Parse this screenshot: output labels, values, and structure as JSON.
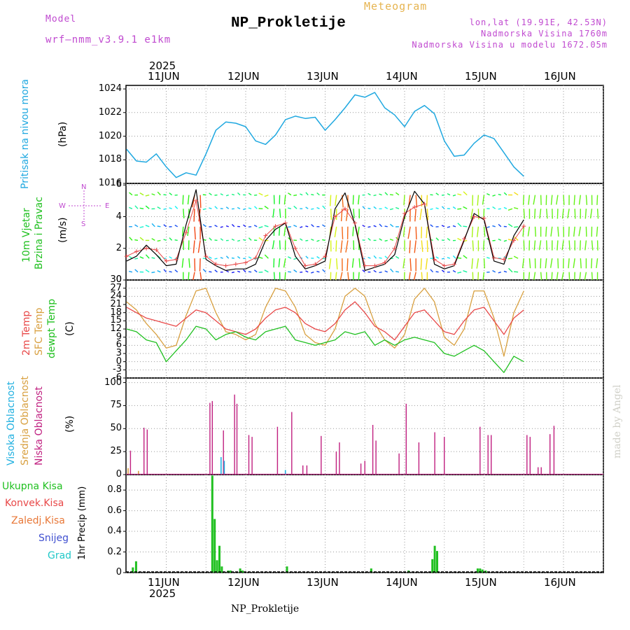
{
  "header": {
    "model_label": "Model",
    "model_name": "wrf–nmm_v3.9.1 e1km",
    "meteogram": "Meteogram",
    "title": "NP_Prokletije",
    "lonlat": "lon,lat (19.91E, 42.53N)",
    "elevation": "Nadmorska Visina 1760m",
    "model_elevation": "Nadmorska Visina u modelu 1672.05m"
  },
  "footer": {
    "station": "NP_Prokletije",
    "credit": "made by Angel"
  },
  "colors": {
    "pressure": "#1fa8e0",
    "wind_speed": "#000000",
    "gust": "#e84848",
    "temp2m": "#e84848",
    "sfc": "#d8a040",
    "dewpt": "#20c020",
    "cloud_high": "#20b0e0",
    "cloud_mid": "#d8a040",
    "cloud_low": "#c02080",
    "precip_total": "#20c020",
    "precip_conv": "#e84848",
    "precip_snow": "#4050d0",
    "label_model": "#c04ad0",
    "label_wind": "#c04ad0"
  },
  "axis": {
    "year": "2025",
    "days": [
      "11JUN",
      "12JUN",
      "13JUN",
      "14JUN",
      "15JUN",
      "16JUN"
    ]
  },
  "panels": {
    "pressure": {
      "ylabel": "Pritisak na nivou mora",
      "unit": "(hPa)",
      "ticks": [
        "1016",
        "1018",
        "1020",
        "1022",
        "1024"
      ]
    },
    "wind": {
      "ylabel1": "10m Vjetar",
      "ylabel2": "Brzina i Pravac",
      "unit": "(m/s)",
      "ticks": [
        "0",
        "2",
        "4",
        "6"
      ],
      "compass_n": "N",
      "compass_s": "S",
      "compass_e": "E",
      "compass_w": "W"
    },
    "temp": {
      "ylabel1": "2m Temp",
      "ylabel2": "SFC Temp",
      "ylabel3": "dewpt Temp",
      "unit": "(C)",
      "ticks": [
        "-6",
        "-3",
        "0",
        "3",
        "6",
        "9",
        "12",
        "15",
        "18",
        "21",
        "24",
        "27",
        "30"
      ]
    },
    "cloud": {
      "ylabel1": "Visoka Oblacnost",
      "ylabel2": "Srednja Oblacnost",
      "ylabel3": "Niska Oblacnost",
      "unit": "(%)",
      "ticks": [
        "0",
        "25",
        "50",
        "75",
        "100"
      ]
    },
    "precip": {
      "legend": [
        "Ukupna Kisa",
        "Konvek.Kisa",
        "Zaledj.Kisa",
        "Snijeg",
        "Grad"
      ],
      "ylabel": "1hr Precip (mm)",
      "ticks": [
        "0",
        "0.2",
        "0.4",
        "0.6",
        "0.8"
      ]
    }
  },
  "chart_data": [
    {
      "type": "line",
      "name": "pressure",
      "ylabel": "Pritisak na nivou mora (hPa)",
      "ylim": [
        1016,
        1024.3
      ],
      "x_start_days": -0.5,
      "step_hours": 3,
      "values": [
        1018.9,
        1017.9,
        1017.8,
        1018.5,
        1017.4,
        1016.5,
        1016.9,
        1016.7,
        1018.5,
        1020.5,
        1021.2,
        1021.1,
        1020.8,
        1019.6,
        1019.3,
        1020.1,
        1021.4,
        1021.7,
        1021.5,
        1021.6,
        1020.5,
        1021.4,
        1022.4,
        1023.5,
        1023.3,
        1023.7,
        1022.4,
        1021.8,
        1020.8,
        1022.1,
        1022.6,
        1021.9,
        1019.6,
        1018.3,
        1018.4,
        1019.4,
        1020.1,
        1019.8,
        1018.6,
        1017.4,
        1016.6
      ],
      "grid": true
    },
    {
      "type": "line",
      "name": "wind",
      "ylabel": "10m Vjetar Brzina i Pravac (m/s)",
      "ylim": [
        0,
        6.1
      ],
      "x_start_days": -0.5,
      "step_hours": 3,
      "series": [
        {
          "name": "speed",
          "values": [
            1.2,
            1.5,
            2.2,
            1.6,
            0.9,
            1.0,
            3.5,
            5.7,
            1.3,
            0.9,
            0.6,
            0.7,
            0.7,
            1.0,
            2.5,
            3.2,
            3.6,
            1.5,
            0.7,
            0.9,
            1.2,
            4.5,
            5.5,
            3.5,
            0.6,
            0.8,
            1.0,
            1.6,
            4.0,
            5.6,
            4.8,
            1.0,
            0.7,
            0.9,
            2.5,
            4.2,
            3.8,
            1.2,
            1.0,
            2.8,
            3.8
          ]
        },
        {
          "name": "gust",
          "values": [
            1.5,
            1.8,
            2.0,
            1.9,
            1.2,
            1.3,
            3.0,
            5.0,
            1.5,
            1.0,
            0.9,
            1.0,
            1.1,
            1.4,
            2.8,
            3.4,
            3.6,
            2.0,
            0.9,
            1.0,
            1.5,
            4.0,
            4.5,
            3.6,
            0.9,
            0.9,
            1.1,
            2.0,
            4.2,
            4.6,
            4.8,
            1.3,
            0.9,
            1.0,
            2.6,
            4.0,
            3.9,
            1.4,
            1.3,
            2.5,
            3.4
          ]
        }
      ],
      "grid": true
    },
    {
      "type": "line",
      "name": "temperature",
      "ylabel": "2m Temp / SFC Temp / dewpt Temp (C)",
      "ylim": [
        -6,
        30
      ],
      "x_start_days": -0.5,
      "step_hours": 3,
      "series": [
        {
          "name": "2m Temp",
          "values": [
            20,
            18,
            16,
            15,
            14,
            13,
            16,
            19,
            18,
            15,
            12,
            11,
            10,
            12,
            16,
            19,
            20,
            18,
            14,
            12,
            11,
            14,
            19,
            22,
            18,
            13,
            11,
            8,
            13,
            18,
            19,
            15,
            11,
            10,
            15,
            19,
            20,
            15,
            10,
            16,
            19
          ]
        },
        {
          "name": "SFC Temp",
          "values": [
            22,
            19,
            14,
            10,
            5,
            6,
            17,
            26,
            27,
            18,
            11,
            10,
            8,
            10,
            20,
            27,
            26,
            20,
            10,
            7,
            6,
            12,
            24,
            27,
            24,
            14,
            8,
            5,
            10,
            23,
            27,
            22,
            9,
            6,
            12,
            26,
            26,
            16,
            2,
            18,
            26
          ]
        },
        {
          "name": "dewpt Temp",
          "values": [
            12,
            11,
            8,
            7,
            0,
            4,
            8,
            13,
            12,
            8,
            10,
            11,
            9,
            8,
            11,
            12,
            13,
            8,
            7,
            6,
            7,
            8,
            11,
            10,
            11,
            6,
            8,
            6,
            8,
            9,
            8,
            7,
            3,
            2,
            4,
            6,
            4,
            0,
            -4,
            2,
            0
          ]
        }
      ],
      "grid": true
    },
    {
      "type": "bar",
      "name": "cloud",
      "ylabel": "Oblacnost (%)",
      "ylim": [
        0,
        105
      ],
      "series": [
        {
          "name": "Niska Oblacnost",
          "points": [
            [
              -0.45,
              26
            ],
            [
              -0.28,
              51
            ],
            [
              -0.24,
              49
            ],
            [
              0.55,
              78
            ],
            [
              0.58,
              80
            ],
            [
              0.72,
              48
            ],
            [
              0.86,
              87
            ],
            [
              0.89,
              77
            ],
            [
              1.04,
              43
            ],
            [
              1.08,
              41
            ],
            [
              1.4,
              52
            ],
            [
              1.58,
              68
            ],
            [
              1.72,
              10
            ],
            [
              1.77,
              10
            ],
            [
              1.95,
              42
            ],
            [
              2.14,
              25
            ],
            [
              2.18,
              35
            ],
            [
              2.45,
              12
            ],
            [
              2.5,
              15
            ],
            [
              2.6,
              54
            ],
            [
              2.64,
              37
            ],
            [
              2.93,
              23
            ],
            [
              3.02,
              77
            ],
            [
              3.18,
              35
            ],
            [
              3.38,
              46
            ],
            [
              3.5,
              41
            ],
            [
              3.95,
              52
            ],
            [
              4.05,
              43
            ],
            [
              4.09,
              43
            ],
            [
              4.54,
              43
            ],
            [
              4.58,
              41
            ],
            [
              4.68,
              8
            ],
            [
              4.72,
              8
            ],
            [
              4.83,
              44
            ],
            [
              4.88,
              53
            ]
          ]
        },
        {
          "name": "Srednja Oblacnost",
          "points": [
            [
              -0.48,
              7
            ],
            [
              -0.35,
              4
            ]
          ]
        },
        {
          "name": "Visoka Oblacnost",
          "points": [
            [
              0.69,
              19
            ],
            [
              0.73,
              15
            ],
            [
              1.5,
              5
            ]
          ]
        }
      ],
      "grid": true
    },
    {
      "type": "bar",
      "name": "precipitation",
      "ylabel": "1hr Precip (mm)",
      "ylim": [
        0,
        0.95
      ],
      "series": [
        {
          "name": "Ukupna Kisa",
          "points": [
            [
              -0.42,
              0.05
            ],
            [
              -0.38,
              0.11
            ],
            [
              0.58,
              0.94
            ],
            [
              0.61,
              0.52
            ],
            [
              0.64,
              0.12
            ],
            [
              0.67,
              0.26
            ],
            [
              0.7,
              0.06
            ],
            [
              0.78,
              0.02
            ],
            [
              0.81,
              0.02
            ],
            [
              0.93,
              0.04
            ],
            [
              0.96,
              0.02
            ],
            [
              1.52,
              0.06
            ],
            [
              2.58,
              0.04
            ],
            [
              3.05,
              0.02
            ],
            [
              3.35,
              0.13
            ],
            [
              3.38,
              0.26
            ],
            [
              3.41,
              0.21
            ],
            [
              3.92,
              0.04
            ],
            [
              3.95,
              0.04
            ],
            [
              3.98,
              0.03
            ],
            [
              4.02,
              0.02
            ]
          ]
        }
      ],
      "grid": true
    }
  ]
}
